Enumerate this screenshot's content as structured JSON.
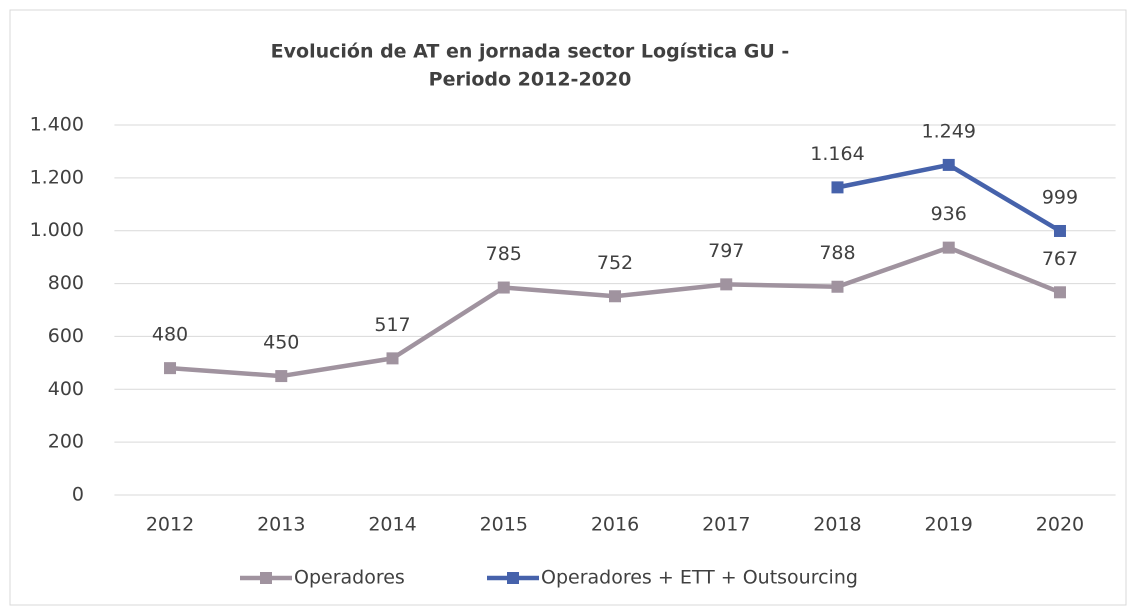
{
  "chart_data": {
    "type": "line",
    "title": [
      "Evolución de AT en jornada sector Logística GU -",
      "Periodo 2012-2020"
    ],
    "categories": [
      "2012",
      "2013",
      "2014",
      "2015",
      "2016",
      "2017",
      "2018",
      "2019",
      "2020"
    ],
    "series": [
      {
        "name": "Operadores",
        "color": "#a0939f",
        "values": [
          480,
          450,
          517,
          785,
          752,
          797,
          788,
          936,
          767
        ]
      },
      {
        "name": "Operadores + ETT + Outsourcing",
        "color": "#4662ab",
        "values": [
          null,
          null,
          null,
          null,
          null,
          null,
          1164,
          1249,
          999
        ],
        "value_labels": [
          null,
          null,
          null,
          null,
          null,
          null,
          "1.164",
          "1.249",
          "999"
        ]
      }
    ],
    "ylim": [
      0,
      1400
    ],
    "yticks": [
      0,
      200,
      400,
      600,
      800,
      {
        "value": 1000,
        "label": "1.000"
      },
      {
        "value": 1200,
        "label": "1.200"
      },
      {
        "value": 1400,
        "label": "1.400"
      }
    ],
    "grid": true,
    "legend": "bottom"
  }
}
